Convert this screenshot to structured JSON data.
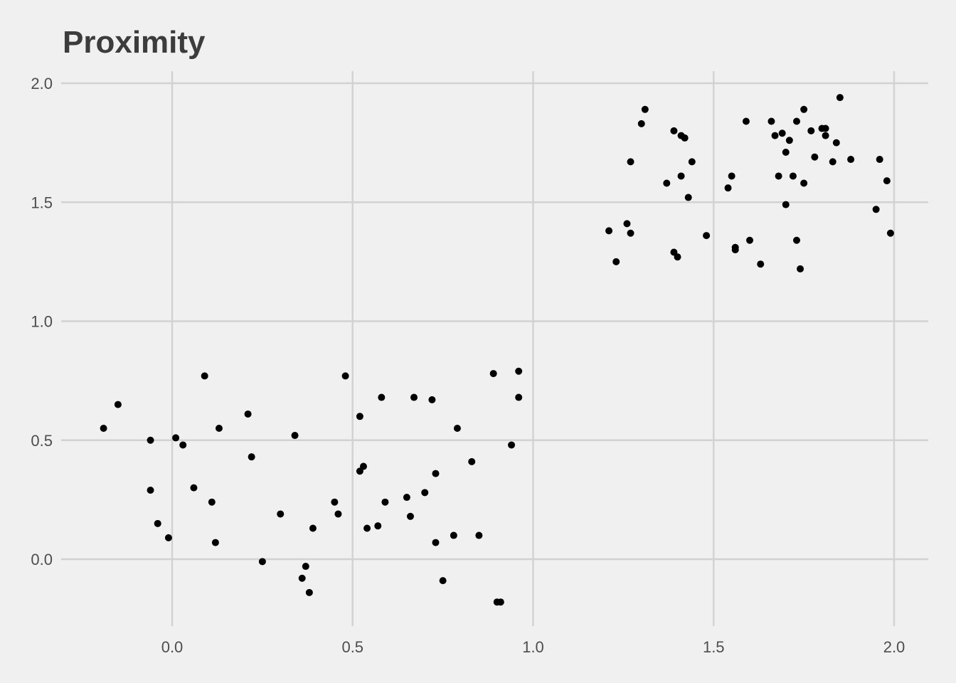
{
  "chart_data": {
    "type": "scatter",
    "title": "Proximity",
    "xlabel": "",
    "ylabel": "",
    "xlim": [
      -0.32,
      2.1
    ],
    "ylim": [
      -0.28,
      2.05
    ],
    "x_ticks": [
      0.0,
      0.5,
      1.0,
      1.5,
      2.0
    ],
    "x_tick_labels": [
      "0.0",
      "0.5",
      "1.0",
      "1.5",
      "2.0"
    ],
    "y_ticks": [
      0.0,
      0.5,
      1.0,
      1.5,
      2.0
    ],
    "y_tick_labels": [
      "0.0",
      "0.5",
      "1.0",
      "1.5",
      "2.0"
    ],
    "grid": true,
    "point_color": "#000000",
    "background": "#f0f0f0",
    "series": [
      {
        "points": [
          [
            -0.19,
            0.55
          ],
          [
            -0.15,
            0.65
          ],
          [
            -0.06,
            0.5
          ],
          [
            -0.06,
            0.29
          ],
          [
            -0.04,
            0.15
          ],
          [
            -0.01,
            0.09
          ],
          [
            0.01,
            0.51
          ],
          [
            0.03,
            0.48
          ],
          [
            0.06,
            0.3
          ],
          [
            0.09,
            0.77
          ],
          [
            0.11,
            0.24
          ],
          [
            0.12,
            0.07
          ],
          [
            0.13,
            0.55
          ],
          [
            0.21,
            0.61
          ],
          [
            0.22,
            0.43
          ],
          [
            0.25,
            -0.01
          ],
          [
            0.3,
            0.19
          ],
          [
            0.34,
            0.52
          ],
          [
            0.36,
            -0.08
          ],
          [
            0.37,
            -0.03
          ],
          [
            0.38,
            -0.14
          ],
          [
            0.39,
            0.13
          ],
          [
            0.45,
            0.24
          ],
          [
            0.46,
            0.19
          ],
          [
            0.48,
            0.77
          ],
          [
            0.52,
            0.37
          ],
          [
            0.52,
            0.6
          ],
          [
            0.53,
            0.39
          ],
          [
            0.54,
            0.13
          ],
          [
            0.57,
            0.14
          ],
          [
            0.58,
            0.68
          ],
          [
            0.59,
            0.24
          ],
          [
            0.65,
            0.26
          ],
          [
            0.66,
            0.18
          ],
          [
            0.67,
            0.68
          ],
          [
            0.7,
            0.28
          ],
          [
            0.72,
            0.67
          ],
          [
            0.73,
            0.07
          ],
          [
            0.73,
            0.36
          ],
          [
            0.75,
            -0.09
          ],
          [
            0.78,
            0.1
          ],
          [
            0.79,
            0.55
          ],
          [
            0.83,
            0.41
          ],
          [
            0.85,
            0.1
          ],
          [
            0.89,
            0.78
          ],
          [
            0.9,
            -0.18
          ],
          [
            0.91,
            -0.18
          ],
          [
            0.94,
            0.48
          ],
          [
            0.96,
            0.68
          ],
          [
            0.96,
            0.79
          ],
          [
            1.21,
            1.38
          ],
          [
            1.23,
            1.25
          ],
          [
            1.26,
            1.41
          ],
          [
            1.27,
            1.67
          ],
          [
            1.27,
            1.37
          ],
          [
            1.3,
            1.83
          ],
          [
            1.31,
            1.89
          ],
          [
            1.37,
            1.58
          ],
          [
            1.39,
            1.8
          ],
          [
            1.39,
            1.29
          ],
          [
            1.4,
            1.27
          ],
          [
            1.41,
            1.61
          ],
          [
            1.41,
            1.78
          ],
          [
            1.42,
            1.77
          ],
          [
            1.43,
            1.52
          ],
          [
            1.44,
            1.67
          ],
          [
            1.48,
            1.36
          ],
          [
            1.54,
            1.56
          ],
          [
            1.55,
            1.61
          ],
          [
            1.56,
            1.31
          ],
          [
            1.56,
            1.3
          ],
          [
            1.59,
            1.84
          ],
          [
            1.6,
            1.34
          ],
          [
            1.63,
            1.24
          ],
          [
            1.66,
            1.84
          ],
          [
            1.67,
            1.78
          ],
          [
            1.68,
            1.61
          ],
          [
            1.69,
            1.79
          ],
          [
            1.7,
            1.49
          ],
          [
            1.7,
            1.71
          ],
          [
            1.71,
            1.76
          ],
          [
            1.72,
            1.61
          ],
          [
            1.73,
            1.34
          ],
          [
            1.73,
            1.84
          ],
          [
            1.74,
            1.22
          ],
          [
            1.75,
            1.58
          ],
          [
            1.75,
            1.89
          ],
          [
            1.77,
            1.8
          ],
          [
            1.78,
            1.69
          ],
          [
            1.8,
            1.81
          ],
          [
            1.81,
            1.78
          ],
          [
            1.81,
            1.81
          ],
          [
            1.83,
            1.67
          ],
          [
            1.84,
            1.75
          ],
          [
            1.85,
            1.94
          ],
          [
            1.88,
            1.68
          ],
          [
            1.95,
            1.47
          ],
          [
            1.96,
            1.68
          ],
          [
            1.98,
            1.59
          ],
          [
            1.99,
            1.37
          ]
        ]
      }
    ]
  }
}
